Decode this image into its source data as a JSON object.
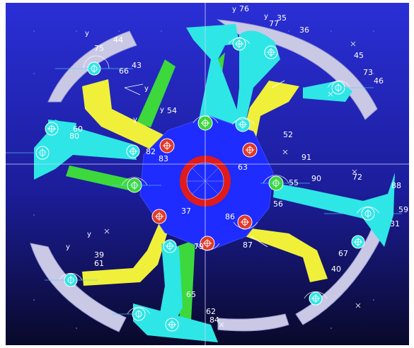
{
  "colors": {
    "background_top": "#2a2fd6",
    "background_bottom": "#09092a",
    "arc": "#c9c9e6",
    "cyan_link": "#2ee6e6",
    "yellow_link": "#f0f03a",
    "green_link": "#3cd83c",
    "hub": "#1e2cff",
    "ring": "#e01b1b",
    "joint_red": "#e03a2a"
  },
  "icons": [
    "joint-marker-icon",
    "coordinate-frame-icon",
    "triad-x-icon"
  ],
  "labels": {
    "l76": "76",
    "l35": "35",
    "l77": "77",
    "l36": "36",
    "l45": "45",
    "l73": "73",
    "l46": "46",
    "l75": "75",
    "l44": "44",
    "l66": "66",
    "l43": "43",
    "l54": "54",
    "l52": "52",
    "l91": "91",
    "l60": "60",
    "l80": "80",
    "l82": "82",
    "l83": "83",
    "l63": "63",
    "l90": "90",
    "l72": "72",
    "l88": "88",
    "l59": "59",
    "l31": "31",
    "l86": "86",
    "l87": "87",
    "l39": "39",
    "l61": "61",
    "l67": "67",
    "l40": "40",
    "l65": "65",
    "l62": "62",
    "l84": "84",
    "l55": "55",
    "l56": "56",
    "l37": "37",
    "l79": "79"
  }
}
